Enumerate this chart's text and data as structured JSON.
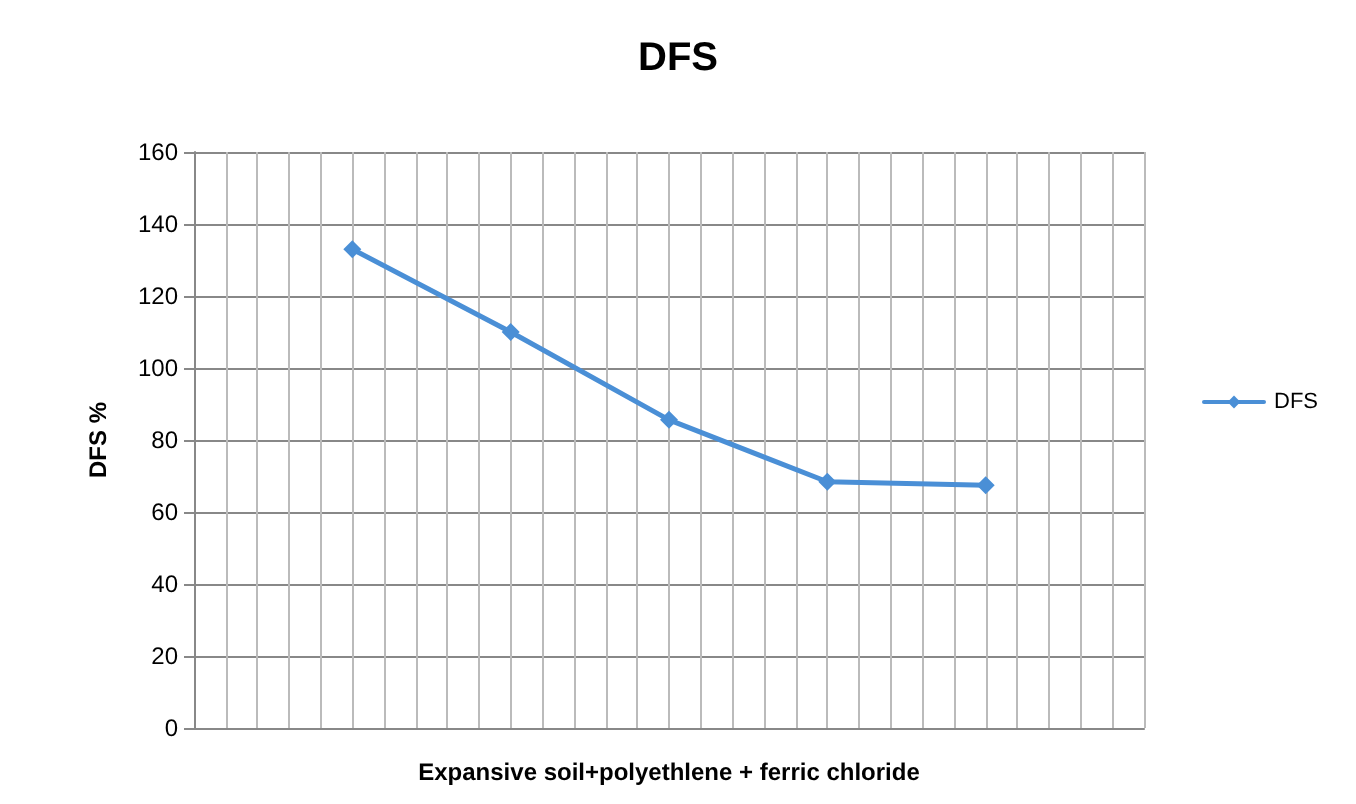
{
  "chart_data": {
    "type": "line",
    "title": "DFS",
    "xlabel": "Expansive soil+polyethlene + ferric chloride",
    "ylabel": "DFS %",
    "categories": [
      null,
      null,
      null,
      null,
      null
    ],
    "series": [
      {
        "name": "DFS",
        "color": "#4a8fd6",
        "values": [
          133,
          110,
          85.6,
          68.4,
          67.4
        ]
      }
    ],
    "ylim": [
      0,
      160
    ],
    "yticks": [
      0,
      20,
      40,
      60,
      80,
      100,
      120,
      140,
      160
    ],
    "grid": true,
    "legend": "right",
    "marker": "diamond",
    "line_style": "solid"
  }
}
